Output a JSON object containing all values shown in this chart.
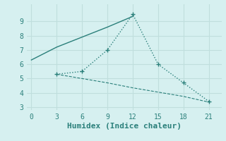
{
  "xlabel": "Humidex (Indice chaleur)",
  "bg_color": "#d6f0f0",
  "grid_color": "#c0dedd",
  "line_color": "#2a7f7a",
  "line1_x": [
    0,
    3,
    6,
    9,
    12
  ],
  "line1_y": [
    6.3,
    7.2,
    7.9,
    8.6,
    9.35
  ],
  "line2_x": [
    3,
    6,
    9,
    12,
    15,
    18,
    21
  ],
  "line2_y": [
    5.3,
    5.5,
    7.0,
    9.5,
    6.0,
    4.7,
    3.4
  ],
  "line3_x": [
    3,
    6,
    9,
    12,
    15,
    18,
    21
  ],
  "line3_y": [
    5.3,
    5.0,
    4.7,
    4.35,
    4.05,
    3.75,
    3.35
  ],
  "xlim": [
    -0.5,
    22.5
  ],
  "ylim": [
    2.8,
    10.2
  ],
  "xticks": [
    0,
    3,
    6,
    9,
    12,
    15,
    18,
    21
  ],
  "yticks": [
    3,
    4,
    5,
    6,
    7,
    8,
    9
  ],
  "font_color": "#2a7f7a",
  "font_size": 7,
  "xlabel_font_size": 8
}
